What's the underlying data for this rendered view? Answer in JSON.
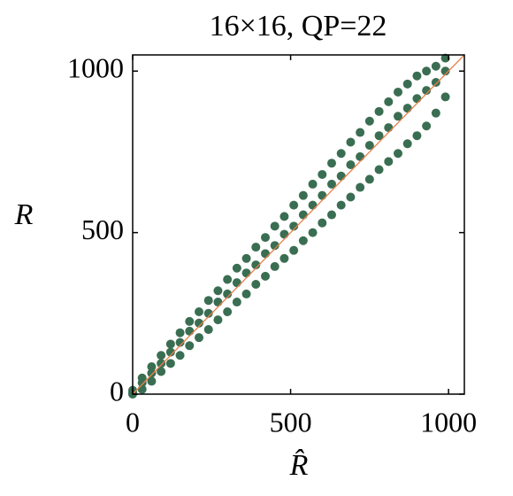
{
  "chart_data": {
    "type": "scatter",
    "title": "16×16, QP=22",
    "x_label": "R̂",
    "y_label": "R",
    "series": [
      {
        "color": "#3a6e52",
        "x": [
          0,
          0,
          0,
          30,
          30,
          30,
          60,
          60,
          60,
          90,
          90,
          90,
          120,
          120,
          120,
          150,
          150,
          150,
          180,
          180,
          180,
          210,
          210,
          210,
          240,
          240,
          240,
          270,
          270,
          270,
          300,
          300,
          300,
          330,
          330,
          330,
          360,
          360,
          360,
          390,
          390,
          390,
          420,
          420,
          420,
          450,
          450,
          450,
          480,
          480,
          480,
          510,
          510,
          510,
          540,
          540,
          540,
          570,
          570,
          570,
          600,
          600,
          600,
          630,
          630,
          630,
          660,
          660,
          660,
          690,
          690,
          690,
          720,
          720,
          720,
          750,
          750,
          750,
          780,
          780,
          780,
          810,
          810,
          810,
          840,
          840,
          840,
          870,
          870,
          870,
          900,
          900,
          900,
          930,
          930,
          930,
          960,
          960,
          960,
          990,
          990,
          990
        ],
        "y": [
          5,
          0,
          12,
          50,
          15,
          35,
          85,
          40,
          65,
          120,
          70,
          95,
          155,
          95,
          130,
          190,
          120,
          160,
          225,
          150,
          195,
          255,
          175,
          220,
          290,
          200,
          250,
          320,
          230,
          285,
          355,
          255,
          310,
          390,
          285,
          345,
          420,
          310,
          375,
          455,
          340,
          400,
          485,
          365,
          435,
          520,
          395,
          460,
          550,
          420,
          495,
          585,
          445,
          520,
          615,
          475,
          555,
          650,
          500,
          585,
          680,
          530,
          615,
          715,
          555,
          650,
          745,
          585,
          675,
          780,
          610,
          710,
          810,
          640,
          735,
          845,
          665,
          770,
          875,
          695,
          800,
          905,
          720,
          825,
          935,
          745,
          860,
          960,
          775,
          885,
          985,
          800,
          915,
          1000,
          830,
          940,
          1015,
          870,
          965,
          1040,
          920,
          1000
        ]
      }
    ],
    "reference_line": {
      "x": [
        0,
        1050
      ],
      "y": [
        0,
        1050
      ],
      "color": "#e8804a"
    },
    "xlim": [
      0,
      1050
    ],
    "ylim": [
      0,
      1050
    ],
    "xticks": [
      0,
      500,
      1000
    ],
    "yticks": [
      0,
      500,
      1000
    ],
    "grid": false
  }
}
